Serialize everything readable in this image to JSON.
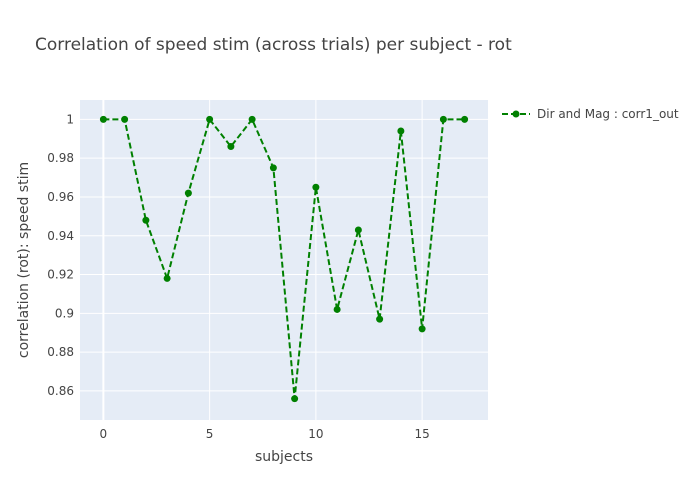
{
  "chart_data": {
    "type": "line",
    "title": "Correlation of speed stim (across trials) per subject - rot",
    "xlabel": "subjects",
    "ylabel": "correlation (rot): speed stim",
    "xlim": [
      -1.1,
      18.1
    ],
    "ylim": [
      0.845,
      1.01
    ],
    "x_ticks": [
      0,
      5,
      10,
      15
    ],
    "y_ticks": [
      0.86,
      0.88,
      0.9,
      0.92,
      0.94,
      0.96,
      0.98,
      1
    ],
    "x_tick_labels": [
      "0",
      "5",
      "10",
      "15"
    ],
    "y_tick_labels": [
      "0.86",
      "0.88",
      "0.9",
      "0.92",
      "0.94",
      "0.96",
      "0.98",
      "1"
    ],
    "grid": true,
    "legend_position": "top-right",
    "series": [
      {
        "name": "Dir and Mag : corr1_out",
        "color": "#008000",
        "line_style": "dash",
        "marker": "circle",
        "x": [
          0,
          1,
          2,
          3,
          4,
          5,
          6,
          7,
          8,
          9,
          10,
          11,
          12,
          13,
          14,
          15,
          16,
          17
        ],
        "y": [
          1.0,
          1.0,
          0.948,
          0.918,
          0.962,
          1.0,
          0.986,
          1.0,
          0.975,
          0.856,
          0.965,
          0.902,
          0.943,
          0.897,
          0.994,
          0.892,
          1.0,
          1.0
        ]
      }
    ]
  }
}
